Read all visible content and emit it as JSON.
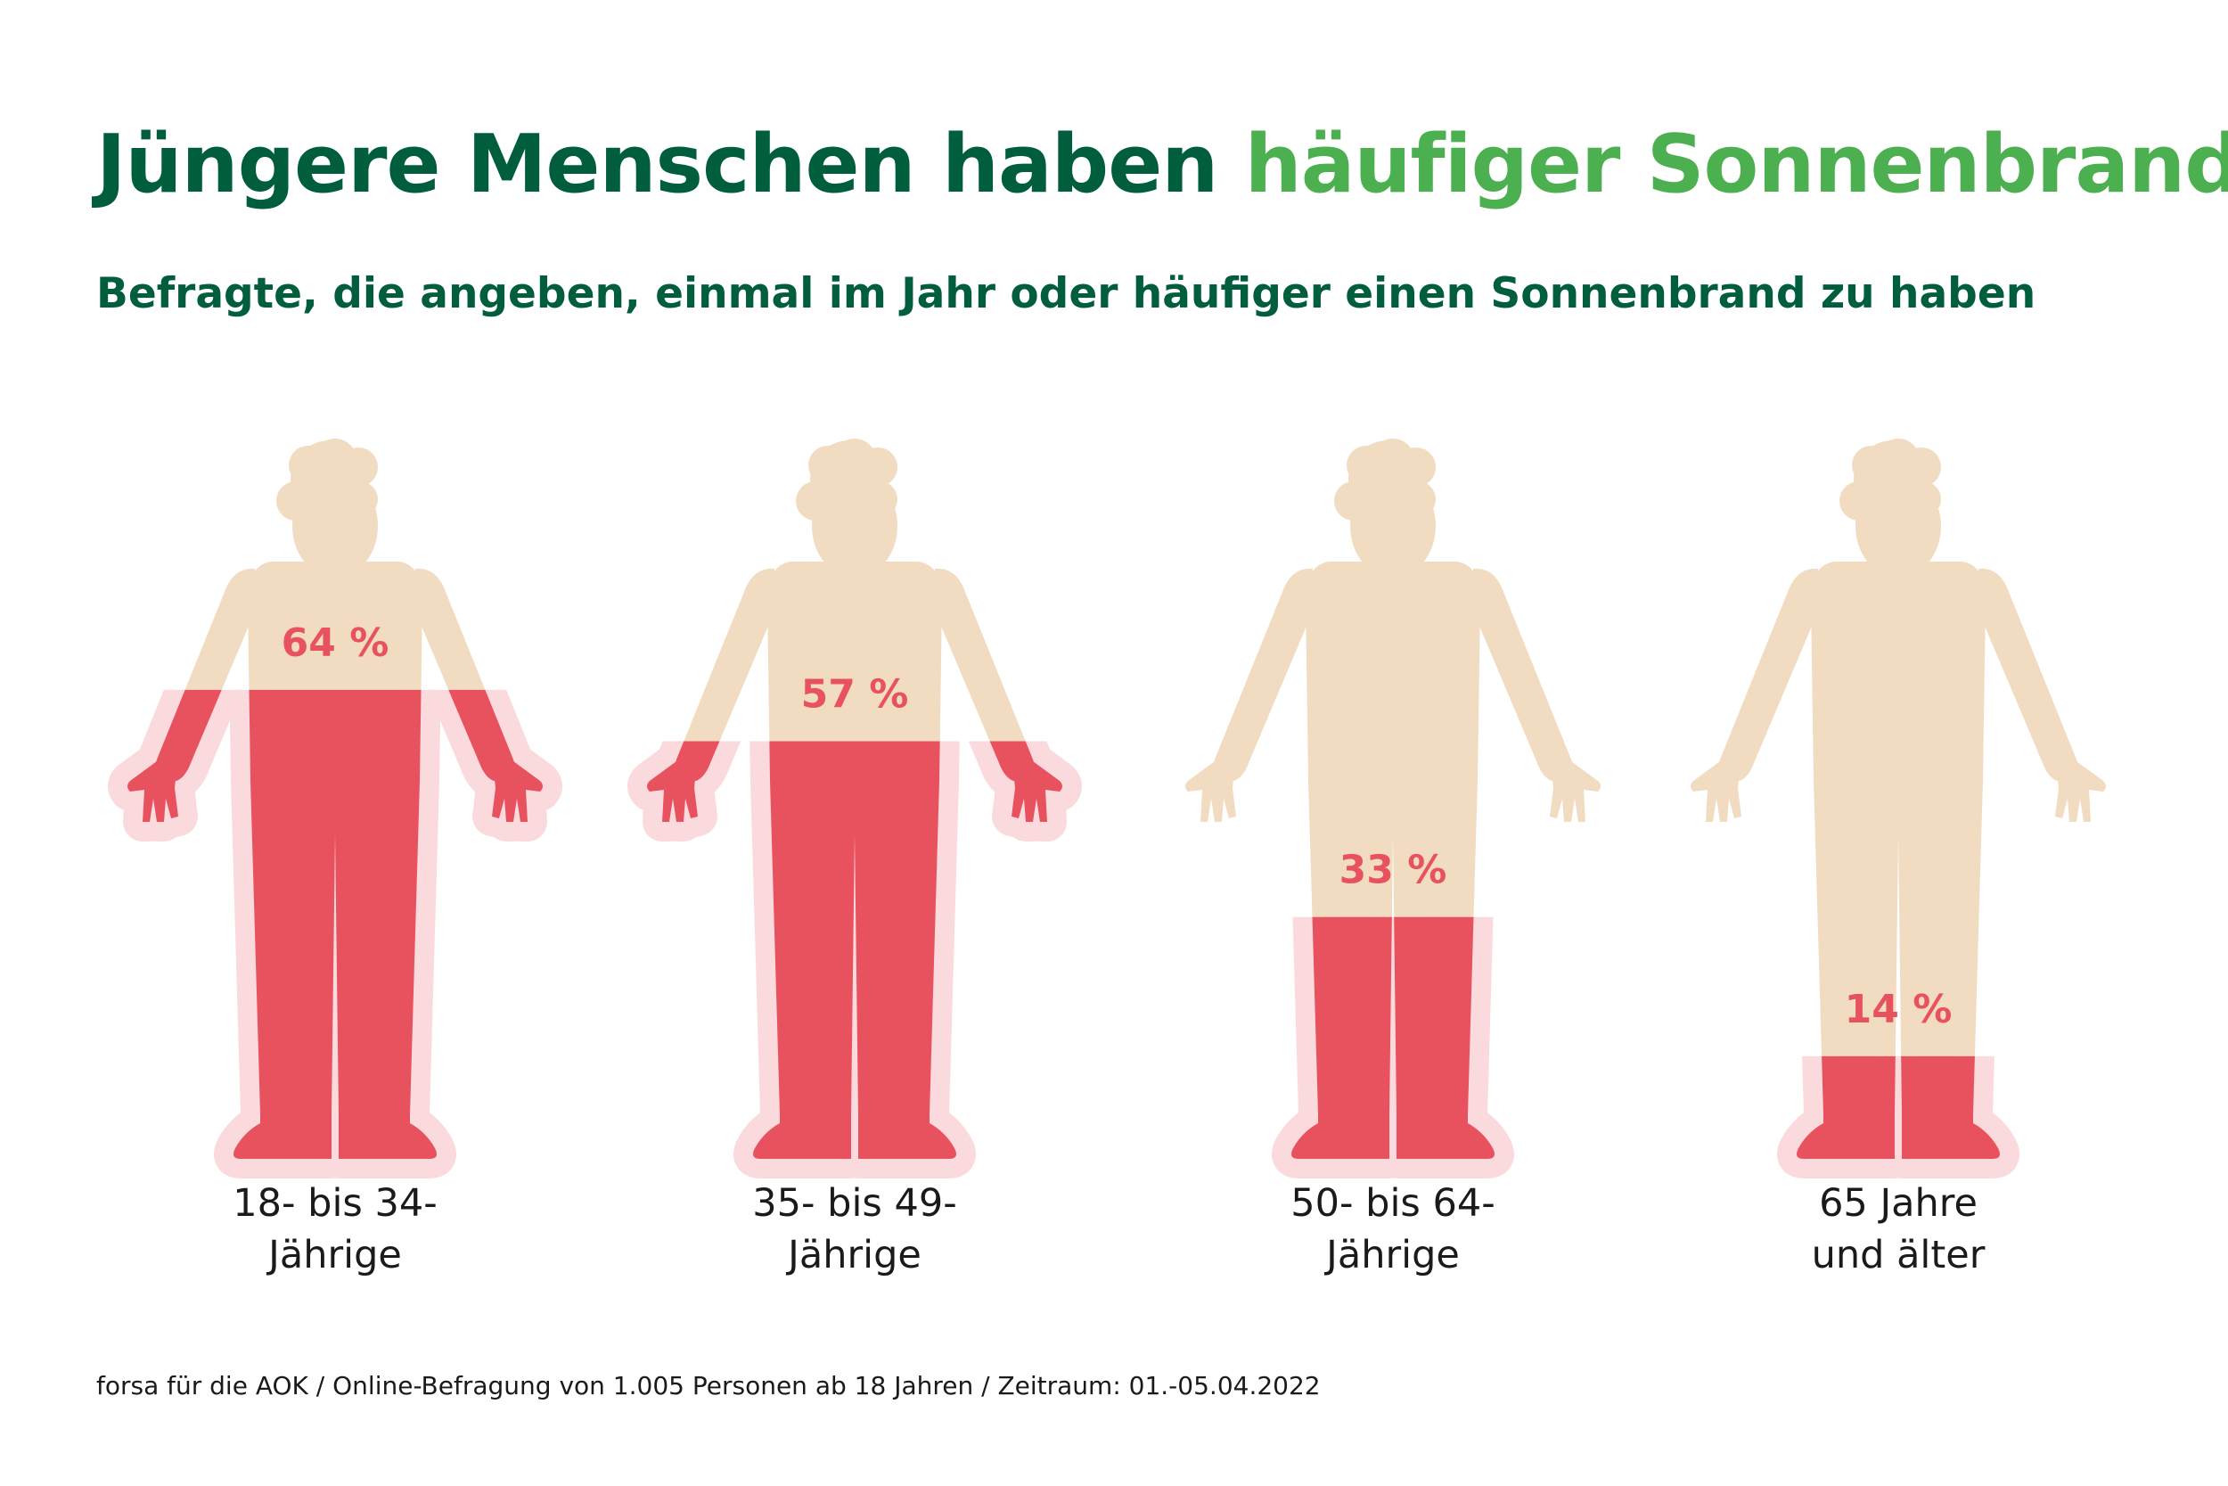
{
  "title": {
    "part1": "Jüngere Menschen haben",
    "part2": "häufiger Sonnenbrand"
  },
  "subtitle": "Befragte, die angeben, einmal im Jahr oder häufiger einen Sonnenbrand zu haben",
  "source": "forsa für die AOK / Online-Befragung von 1.005 Personen ab 18 Jahren / Zeitraum: 01.-05.04.2022",
  "colors": {
    "title_dark": "#005e3c",
    "title_accent": "#4caf50",
    "skin": "#f1dcc2",
    "burn": "#e8525e",
    "burn_glow": "#fbdade"
  },
  "chart_data": {
    "type": "bar",
    "title": "Befragte, die angeben, einmal im Jahr oder häufiger einen Sonnenbrand zu haben",
    "categories": [
      "18- bis 34-\nJährige",
      "35- bis 49-\nJährige",
      "50- bis 64-\nJährige",
      "65 Jahre\nund älter"
    ],
    "series": [
      {
        "values": [
          64,
          57,
          33,
          14
        ],
        "labels": [
          "64 %",
          "57 %",
          "33 %",
          "14 %"
        ]
      }
    ],
    "unit": "%",
    "ylim": [
      0,
      100
    ],
    "grid": false
  }
}
